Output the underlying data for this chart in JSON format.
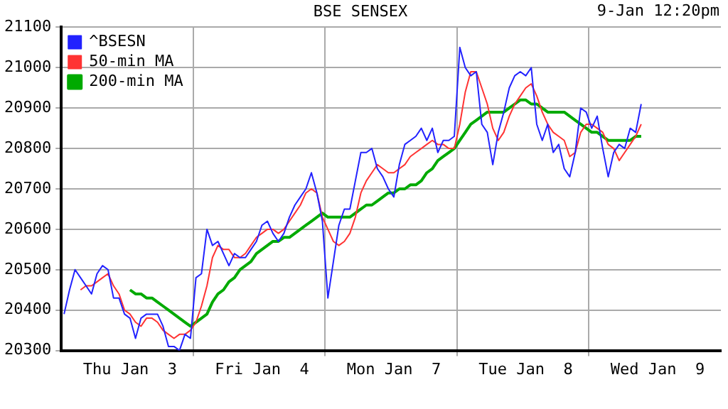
{
  "chart_data": {
    "type": "line",
    "title": "BSE SENSEX",
    "annotations": [
      "9-Jan 12:20pm"
    ],
    "categories": [
      null,
      null,
      null,
      null,
      null,
      null,
      null,
      null,
      null,
      null,
      null,
      null,
      "Thu Jan  3",
      null,
      null,
      null,
      null,
      null,
      null,
      null,
      null,
      null,
      null,
      null,
      null,
      null,
      null,
      null,
      null,
      null,
      null,
      null,
      null,
      null,
      null,
      null,
      "Fri Jan  4",
      null,
      null,
      null,
      null,
      null,
      null,
      null,
      null,
      null,
      null,
      null,
      null,
      null,
      null,
      null,
      null,
      null,
      null,
      null,
      null,
      null,
      null,
      null,
      "Mon Jan  7",
      null,
      null,
      null,
      null,
      null,
      null,
      null,
      null,
      null,
      null,
      null,
      null,
      null,
      null,
      null,
      null,
      null,
      null,
      null,
      null,
      null,
      null,
      null,
      "Tue Jan  8",
      null,
      null,
      null,
      null,
      null,
      null,
      null,
      null,
      null,
      null,
      null,
      null,
      null,
      null,
      null,
      null,
      null,
      null,
      null,
      null,
      null,
      null,
      null,
      "Wed Jan  9",
      null,
      null,
      null,
      null,
      null,
      null,
      null,
      null,
      null,
      null,
      null
    ],
    "ylim": [
      20300,
      21100
    ],
    "yticks": [
      20300,
      20400,
      20500,
      20600,
      20700,
      20800,
      20900,
      21000,
      21100
    ],
    "grid": true,
    "legend": "top left",
    "marker": "none",
    "line_style": "solid",
    "series": [
      {
        "name": "^BSESN",
        "color": "#2222ff",
        "values": [
          20390,
          20450,
          20500,
          20480,
          20460,
          20440,
          20490,
          20510,
          20500,
          20430,
          20430,
          20390,
          20380,
          20330,
          20380,
          20390,
          20390,
          20390,
          20360,
          20310,
          20310,
          20300,
          20340,
          20330,
          20480,
          20490,
          20600,
          20560,
          20570,
          20540,
          20510,
          20540,
          20530,
          20530,
          20550,
          20570,
          20610,
          20620,
          20590,
          20570,
          20590,
          20630,
          20660,
          20680,
          20700,
          20740,
          20690,
          20620,
          20430,
          20520,
          20610,
          20650,
          20650,
          20720,
          20790,
          20790,
          20800,
          20750,
          20730,
          20700,
          20680,
          20760,
          20810,
          20820,
          20830,
          20850,
          20820,
          20850,
          20790,
          20820,
          20820,
          20830,
          21050,
          21000,
          20980,
          20990,
          20860,
          20840,
          20760,
          20840,
          20890,
          20950,
          20980,
          20990,
          20980,
          21000,
          20860,
          20820,
          20860,
          20790,
          20810,
          20750,
          20730,
          20790,
          20900,
          20890,
          20850,
          20880,
          20800,
          20730,
          20790,
          20810,
          20800,
          20850,
          20840,
          20910,
          null,
          null,
          null,
          null,
          null,
          null,
          null,
          null,
          null,
          null,
          null,
          null,
          null,
          null
        ]
      },
      {
        "name": "50-min MA",
        "color": "#ff3333",
        "values": [
          null,
          null,
          null,
          20450,
          20460,
          20460,
          20470,
          20480,
          20490,
          20460,
          20440,
          20400,
          20390,
          20370,
          20360,
          20380,
          20380,
          20370,
          20350,
          20340,
          20330,
          20340,
          20340,
          20350,
          20370,
          20410,
          20460,
          20530,
          20560,
          20550,
          20550,
          20530,
          20530,
          20540,
          20560,
          20580,
          20590,
          20600,
          20600,
          20590,
          20600,
          20620,
          20640,
          20660,
          20690,
          20700,
          20690,
          20630,
          20600,
          20570,
          20560,
          20570,
          20590,
          20630,
          20690,
          20720,
          20740,
          20760,
          20750,
          20740,
          20740,
          20750,
          20760,
          20780,
          20790,
          20800,
          20810,
          20820,
          20810,
          20810,
          20800,
          20800,
          20860,
          20940,
          20990,
          20990,
          20950,
          20910,
          20850,
          20820,
          20840,
          20880,
          20910,
          20930,
          20950,
          20960,
          20930,
          20890,
          20860,
          20840,
          20830,
          20820,
          20780,
          20790,
          20840,
          20860,
          20860,
          20850,
          20840,
          20810,
          20800,
          20770,
          20790,
          20810,
          20830,
          20860,
          null,
          null,
          null,
          null,
          null,
          null,
          null,
          null,
          null,
          null,
          null,
          null,
          null,
          null
        ]
      },
      {
        "name": "200-min MA",
        "color": "#00aa00",
        "values": [
          null,
          null,
          null,
          null,
          null,
          null,
          null,
          null,
          null,
          null,
          null,
          null,
          20450,
          20440,
          20440,
          20430,
          20430,
          20420,
          20410,
          20400,
          20390,
          20380,
          20370,
          20360,
          20370,
          20380,
          20390,
          20420,
          20440,
          20450,
          20470,
          20480,
          20500,
          20510,
          20520,
          20540,
          20550,
          20560,
          20570,
          20570,
          20580,
          20580,
          20590,
          20600,
          20610,
          20620,
          20630,
          20640,
          20630,
          20630,
          20630,
          20630,
          20630,
          20640,
          20650,
          20660,
          20660,
          20670,
          20680,
          20690,
          20690,
          20700,
          20700,
          20710,
          20710,
          20720,
          20740,
          20750,
          20770,
          20780,
          20790,
          20800,
          20820,
          20840,
          20860,
          20870,
          20880,
          20890,
          20890,
          20890,
          20890,
          20900,
          20910,
          20920,
          20920,
          20910,
          20910,
          20900,
          20890,
          20890,
          20890,
          20890,
          20880,
          20870,
          20860,
          20850,
          20840,
          20840,
          20830,
          20820,
          20820,
          20820,
          20820,
          20820,
          20830,
          20830,
          null,
          null,
          null,
          null,
          null,
          null,
          null,
          null,
          null,
          null,
          null,
          null,
          null,
          null
        ]
      }
    ]
  }
}
